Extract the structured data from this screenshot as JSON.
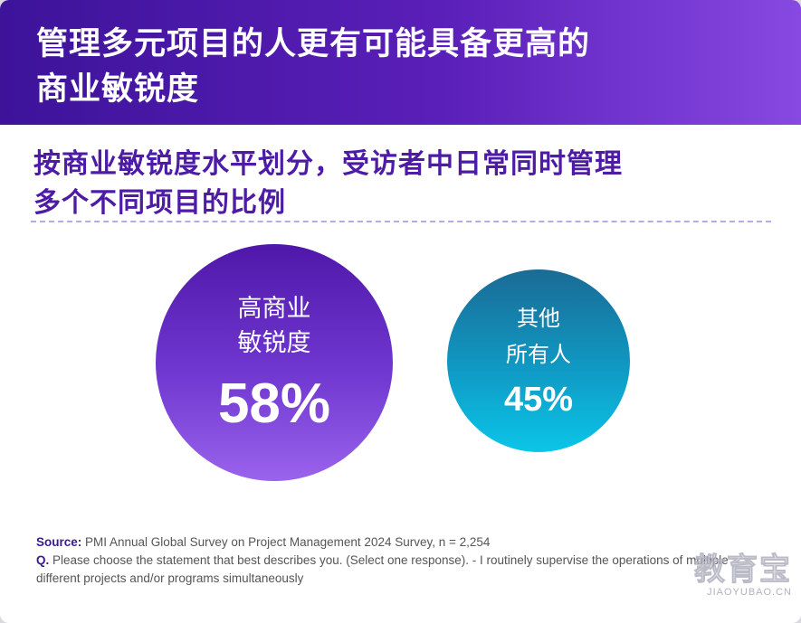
{
  "header": {
    "title_line1": "管理多元项目的人更有可能具备更高的",
    "title_line2": "商业敏锐度"
  },
  "subtitle": {
    "line1": "按商业敏锐度水平划分，受访者中日常同时管理",
    "line2": "多个不同项目的比例"
  },
  "bubbles": {
    "high": {
      "label_line1": "高商业",
      "label_line2": "敏锐度",
      "value": "58%",
      "percent": 58,
      "color_top": "#4f17a9",
      "color_bottom": "#9a63ec"
    },
    "others": {
      "label_line1": "其他",
      "label_line2": "所有人",
      "value": "45%",
      "percent": 45,
      "color_top": "#1a6b95",
      "color_bottom": "#0bc5e8"
    }
  },
  "footnote": {
    "source_label": "Source:",
    "source_text": " PMI Annual Global Survey on Project Management 2024 Survey, n = 2,254",
    "q_label": "Q.",
    "q_text": " Please choose the statement that best describes you.  (Select one response). -  I routinely supervise the operations of multiple different projects and/or programs simultaneously"
  },
  "watermark": {
    "logo_text": "教育宝",
    "url_text": "JIAOYUBAO.CN"
  },
  "colors": {
    "header_start": "#3d139a",
    "header_end": "#8848e2",
    "subtitle_text": "#4d1ba5",
    "footnote_label": "#3a1b8c"
  }
}
